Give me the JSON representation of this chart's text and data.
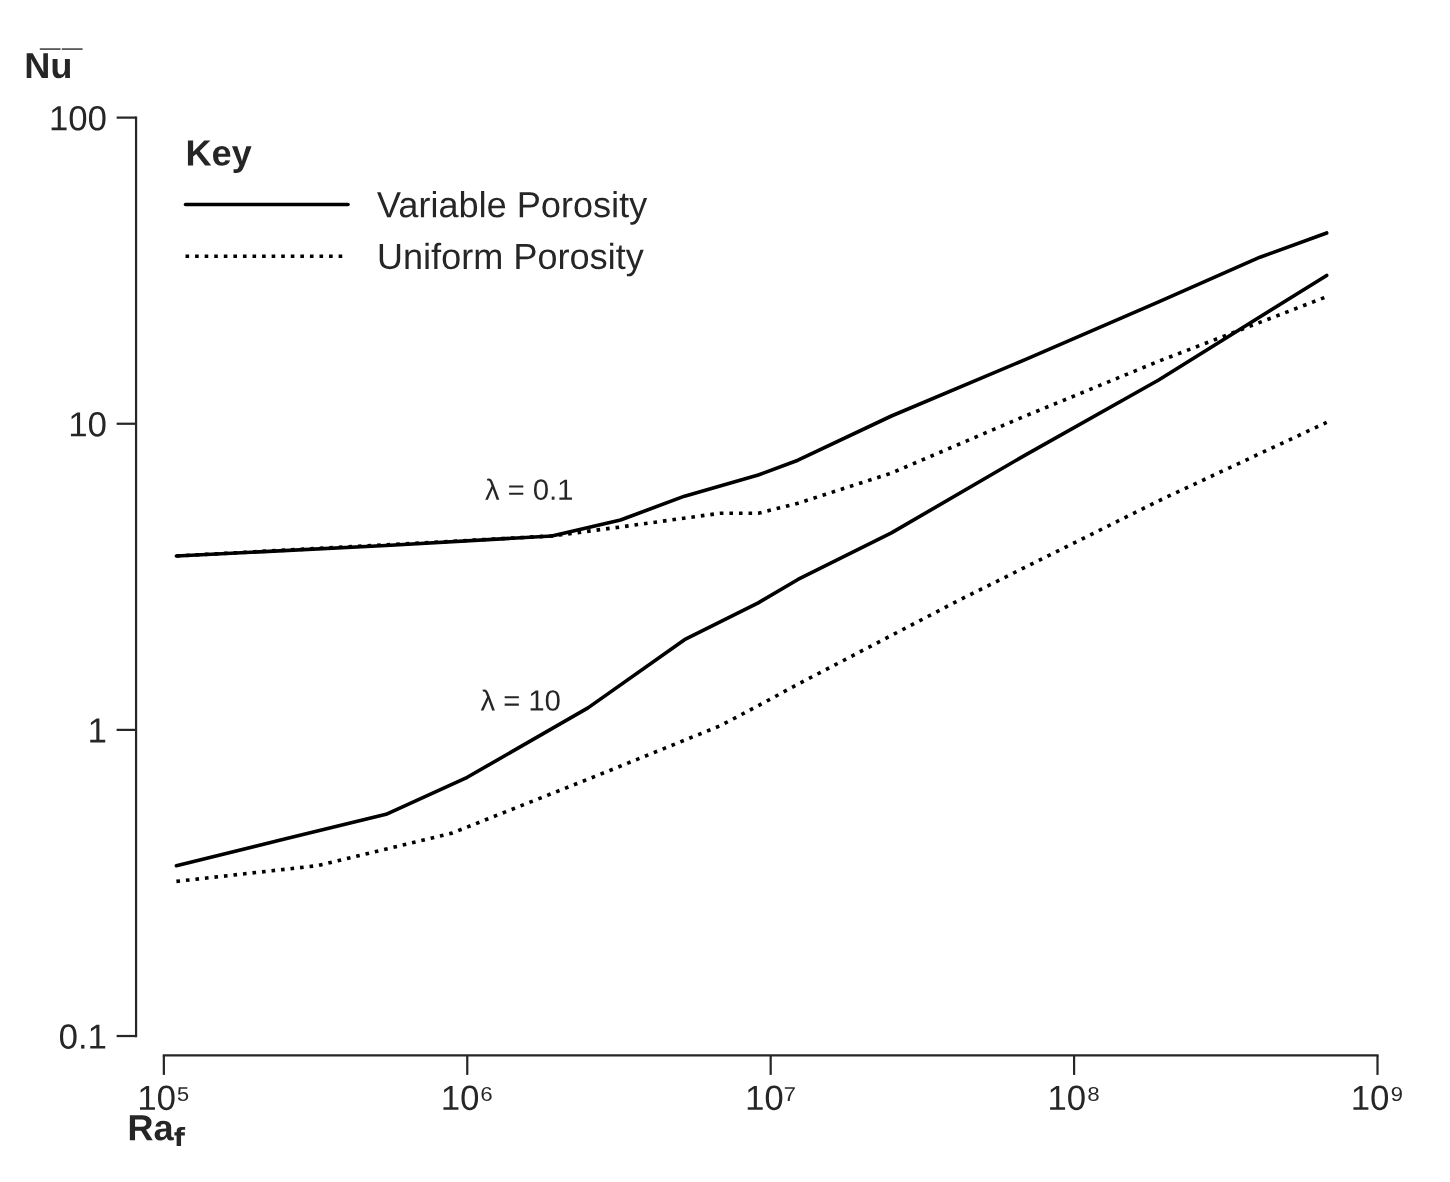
{
  "chart_data": {
    "type": "line",
    "ylabel": "N̅u̅",
    "xlabel": "Ra$_{f}$",
    "legend_title": "Key",
    "log": "xy",
    "grid": false,
    "legend": "top left",
    "xlim": [
      100000,
      1000000000
    ],
    "ylim": [
      0.1,
      100
    ],
    "xticks": [
      {
        "value": 100000,
        "label": "10⁵"
      },
      {
        "value": 1000000,
        "label": "10⁶"
      },
      {
        "value": 10000000,
        "label": "10⁷"
      },
      {
        "value": 100000000,
        "label": "10⁸"
      },
      {
        "value": 1000000000,
        "label": "10⁹"
      }
    ],
    "yticks": [
      0.1,
      1,
      10,
      100
    ],
    "annotations": [
      {
        "text": "λ = 0.1",
        "x": 1600000,
        "y": 4.2
      },
      {
        "text": "λ = 10",
        "x": 1500000,
        "y": 0.86
      }
    ],
    "series": [
      {
        "name": "Variable Porosity",
        "color": "#000000",
        "line_style": "solid",
        "x": [
          110000,
          540000,
          1900000,
          3200000,
          5200000,
          9100000,
          12300000,
          25000000,
          69000000,
          190000000,
          410000000,
          680000000
        ],
        "values": [
          3.7,
          4.0,
          4.3,
          4.85,
          5.8,
          6.8,
          7.6,
          10.6,
          16.2,
          25,
          35,
          42
        ]
      },
      {
        "name": "Uniform Porosity",
        "color": "#000000",
        "line_style": "dotted",
        "x": [
          110000,
          1900000,
          3200000,
          6800000,
          9100000,
          12300000,
          25000000,
          69000000,
          190000000,
          680000000
        ],
        "values": [
          3.7,
          4.3,
          4.6,
          5.1,
          5.1,
          5.5,
          6.9,
          10.6,
          16,
          26
        ]
      },
      {
        "color": "#000000",
        "line_style": "solid",
        "x": [
          110000,
          250000,
          540000,
          1000000,
          2500000,
          5200000,
          9100000,
          12300000,
          25000000,
          69000000,
          190000000,
          680000000
        ],
        "values": [
          0.36,
          0.44,
          0.53,
          0.7,
          1.18,
          1.97,
          2.6,
          3.1,
          4.4,
          7.9,
          13.9,
          30.5
        ]
      },
      {
        "color": "#000000",
        "line_style": "dotted",
        "x": [
          110000,
          320000,
          890000,
          2500000,
          6800000,
          9100000,
          12300000,
          42000000,
          190000000,
          680000000
        ],
        "values": [
          0.32,
          0.36,
          0.46,
          0.69,
          1.03,
          1.2,
          1.41,
          2.66,
          5.6,
          10.1
        ]
      }
    ]
  }
}
